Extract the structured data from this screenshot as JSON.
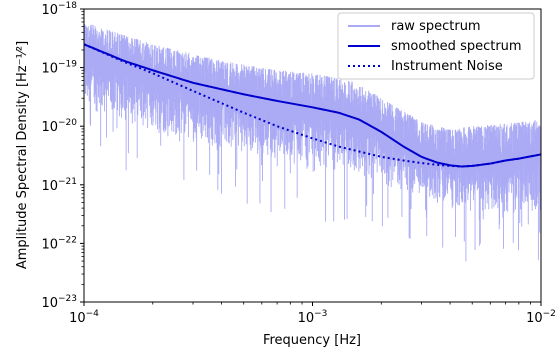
{
  "chart_data": {
    "type": "line",
    "xlabel": "Frequency [Hz]",
    "ylabel": "Amplitude Spectral Density [Hz⁻¹⁄²]",
    "x_scale": "log",
    "y_scale": "log",
    "xlim": [
      0.0001,
      0.01
    ],
    "ylim": [
      1e-23,
      1e-18
    ],
    "x_ticks": [
      {
        "value": 0.0001,
        "base": "10",
        "exp": "−4"
      },
      {
        "value": 0.001,
        "base": "10",
        "exp": "−3"
      },
      {
        "value": 0.01,
        "base": "10",
        "exp": "−2"
      }
    ],
    "y_ticks": [
      {
        "value": 1e-23,
        "base": "10",
        "exp": "−23"
      },
      {
        "value": 1e-22,
        "base": "10",
        "exp": "−22"
      },
      {
        "value": 1e-21,
        "base": "10",
        "exp": "−21"
      },
      {
        "value": 1e-20,
        "base": "10",
        "exp": "−20"
      },
      {
        "value": 1e-19,
        "base": "10",
        "exp": "−19"
      },
      {
        "value": 1e-18,
        "base": "10",
        "exp": "−18"
      }
    ],
    "legend_position": "top-right",
    "series": [
      {
        "name": "raw spectrum",
        "style": "noisy-band",
        "color": "#aaaaf5",
        "upper_x": [
          0.0001,
          0.0002,
          0.0004,
          0.0007,
          0.001,
          0.0015,
          0.002,
          0.003,
          0.004,
          0.005,
          0.007,
          0.01
        ],
        "upper_y": [
          6e-19,
          2.5e-19,
          1.3e-19,
          9e-20,
          8e-20,
          6e-20,
          3e-20,
          1.2e-20,
          9e-21,
          1e-20,
          1.1e-20,
          1.3e-20
        ],
        "lower_x": [
          0.0001,
          0.0002,
          0.0004,
          0.0007,
          0.001,
          0.0015,
          0.002,
          0.003,
          0.004,
          0.005,
          0.007,
          0.01
        ],
        "lower_y": [
          2e-20,
          8e-21,
          4e-21,
          2.5e-21,
          2e-21,
          1.5e-21,
          1e-21,
          6e-22,
          4e-22,
          3e-22,
          3e-22,
          3.5e-22
        ]
      },
      {
        "name": "smoothed spectrum",
        "style": "solid",
        "color": "#0000cc",
        "x": [
          0.0001,
          0.00015,
          0.0002,
          0.0003,
          0.0005,
          0.0007,
          0.001,
          0.0013,
          0.0016,
          0.002,
          0.0025,
          0.003,
          0.0035,
          0.004,
          0.0045,
          0.005,
          0.006,
          0.007,
          0.008,
          0.01
        ],
        "y": [
          2.5e-19,
          1.3e-19,
          9e-20,
          5.5e-20,
          3.5e-20,
          2.7e-20,
          2.1e-20,
          1.7e-20,
          1.3e-20,
          8e-21,
          4.5e-21,
          3e-21,
          2.4e-21,
          2.15e-21,
          2.05e-21,
          2.1e-21,
          2.3e-21,
          2.6e-21,
          2.8e-21,
          3.3e-21
        ]
      },
      {
        "name": "Instrument Noise",
        "style": "dotted",
        "color": "#0000cc",
        "x": [
          0.0001,
          0.00015,
          0.0002,
          0.0003,
          0.0005,
          0.0007,
          0.001,
          0.0013,
          0.0016,
          0.002,
          0.0025,
          0.003,
          0.0035,
          0.004,
          0.0045,
          0.005,
          0.006,
          0.007,
          0.008,
          0.01
        ],
        "y": [
          2.5e-19,
          1.25e-19,
          8e-20,
          4e-20,
          1.7e-20,
          1e-20,
          6.2e-21,
          4.5e-21,
          3.7e-21,
          3e-21,
          2.6e-21,
          2.35e-21,
          2.2e-21,
          2.1e-21,
          2.05e-21,
          2.1e-21,
          2.3e-21,
          2.6e-21,
          2.8e-21,
          3.3e-21
        ]
      }
    ]
  }
}
